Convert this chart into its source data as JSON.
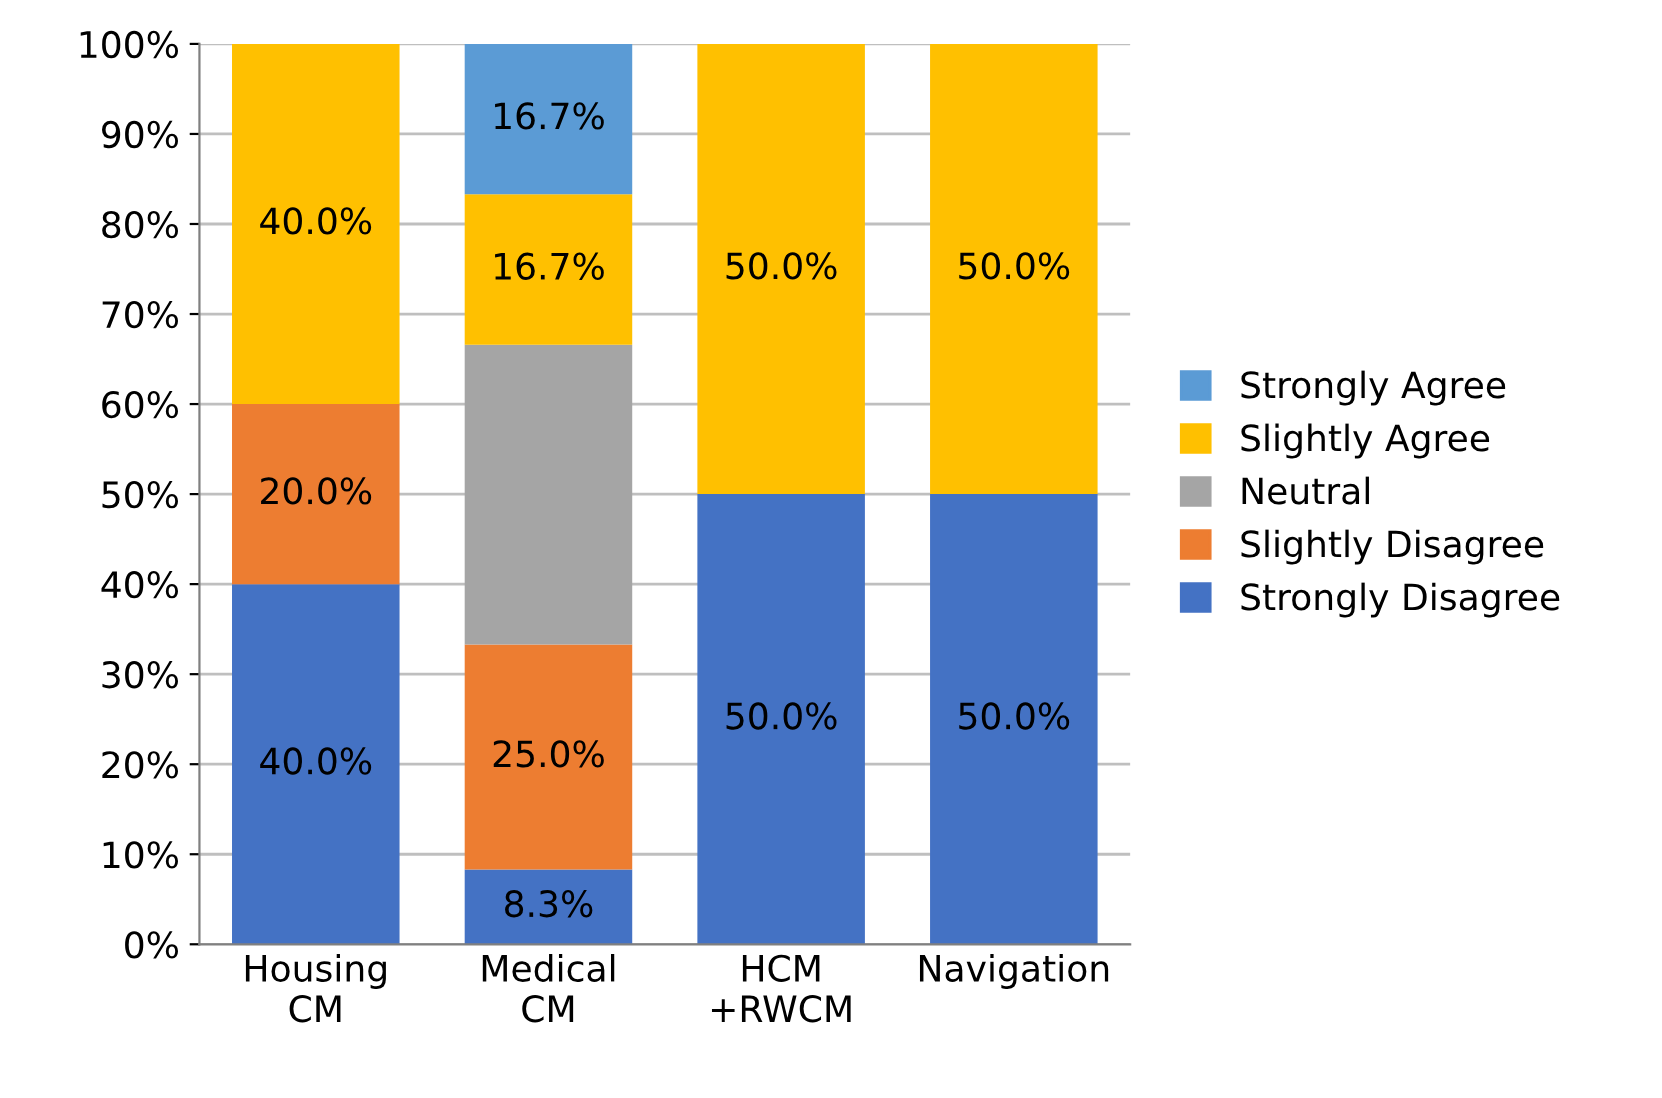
{
  "chart_data": {
    "type": "bar",
    "stacked": true,
    "categories": [
      "Housing\nCM",
      "Medical\nCM",
      "HCM\n+RWCM",
      "Navigation"
    ],
    "series": [
      {
        "name": "Strongly Disagree",
        "color": "#4472c4",
        "values": [
          40,
          8.3,
          50,
          50
        ],
        "value_labels": [
          "40.0%",
          "8.3%",
          "50.0%",
          "50.0%"
        ]
      },
      {
        "name": "Slightly Disagree",
        "color": "#ed7d31",
        "values": [
          20,
          25,
          0,
          0
        ],
        "value_labels": [
          "20.0%",
          "25.0%",
          null,
          null
        ]
      },
      {
        "name": "Neutral",
        "color": "#a5a5a5",
        "values": [
          0,
          33.3,
          0,
          0
        ],
        "value_labels": [
          null,
          null,
          null,
          null
        ]
      },
      {
        "name": "Slightly Agree",
        "color": "#ffc000",
        "values": [
          40,
          16.7,
          50,
          50
        ],
        "value_labels": [
          "40.0%",
          "16.7%",
          "50.0%",
          "50.0%"
        ]
      },
      {
        "name": "Strongly Agree",
        "color": "#5b9bd5",
        "values": [
          0,
          16.7,
          0,
          0
        ],
        "value_labels": [
          null,
          "16.7%",
          null,
          null
        ]
      }
    ],
    "ylim": [
      0,
      100
    ],
    "yticks": [
      {
        "value": 0,
        "label": "0%"
      },
      {
        "value": 10,
        "label": "10%"
      },
      {
        "value": 20,
        "label": "20%"
      },
      {
        "value": 30,
        "label": "30%"
      },
      {
        "value": 40,
        "label": "40%"
      },
      {
        "value": 50,
        "label": "50%"
      },
      {
        "value": 60,
        "label": "60%"
      },
      {
        "value": 70,
        "label": "70%"
      },
      {
        "value": 80,
        "label": "80%"
      },
      {
        "value": 90,
        "label": "90%"
      },
      {
        "value": 100,
        "label": "100%"
      }
    ],
    "grid": "y",
    "legend": "right"
  }
}
